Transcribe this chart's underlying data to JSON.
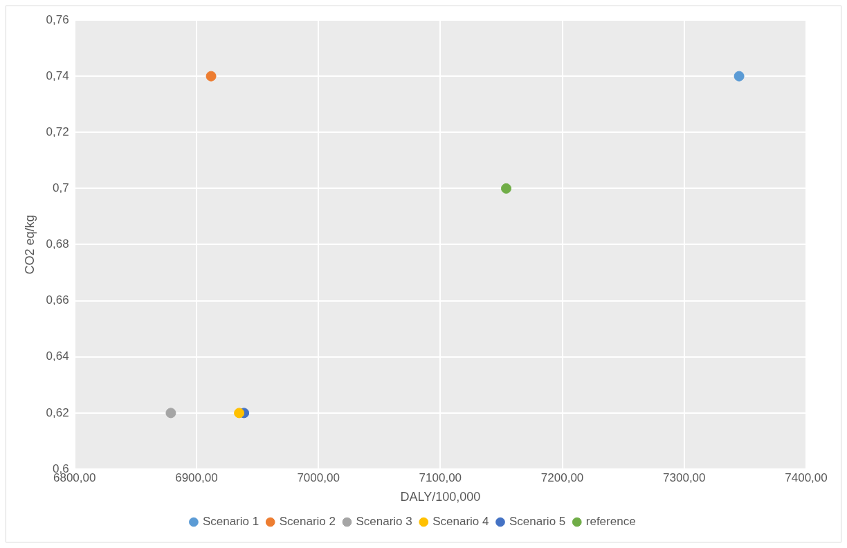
{
  "chart_data": {
    "type": "scatter",
    "xlabel": "DALY/100,000",
    "ylabel": "CO2 eq/kg",
    "xlim": [
      6800,
      7400
    ],
    "xticks": [
      {
        "value": 6800,
        "label": "6800,00"
      },
      {
        "value": 6900,
        "label": "6900,00"
      },
      {
        "value": 7000,
        "label": "7000,00"
      },
      {
        "value": 7100,
        "label": "7100,00"
      },
      {
        "value": 7200,
        "label": "7200,00"
      },
      {
        "value": 7300,
        "label": "7300,00"
      },
      {
        "value": 7400,
        "label": "7400,00"
      }
    ],
    "ylim": [
      0.6,
      0.76
    ],
    "yticks": [
      {
        "value": 0.6,
        "label": "0,6"
      },
      {
        "value": 0.62,
        "label": "0,62"
      },
      {
        "value": 0.64,
        "label": "0,64"
      },
      {
        "value": 0.66,
        "label": "0,66"
      },
      {
        "value": 0.68,
        "label": "0,68"
      },
      {
        "value": 0.7,
        "label": "0,7"
      },
      {
        "value": 0.72,
        "label": "0,72"
      },
      {
        "value": 0.74,
        "label": "0,74"
      },
      {
        "value": 0.76,
        "label": "0,76"
      }
    ],
    "grid": true,
    "legend": "bottom",
    "marker": "circle",
    "series": [
      {
        "name": "Scenario 1",
        "color": "#5b9bd5",
        "x": [
          7345
        ],
        "values": [
          0.74
        ]
      },
      {
        "name": "Scenario 2",
        "color": "#ed7d31",
        "x": [
          6912
        ],
        "values": [
          0.74
        ]
      },
      {
        "name": "Scenario 3",
        "color": "#a5a5a5",
        "x": [
          6879
        ],
        "values": [
          0.62
        ]
      },
      {
        "name": "Scenario 4",
        "color": "#ffc000",
        "x": [
          6935
        ],
        "values": [
          0.62
        ]
      },
      {
        "name": "Scenario 5",
        "color": "#4472c4",
        "x": [
          6939
        ],
        "values": [
          0.62
        ]
      },
      {
        "name": "reference",
        "color": "#70ad47",
        "x": [
          7154
        ],
        "values": [
          0.7
        ]
      }
    ]
  }
}
